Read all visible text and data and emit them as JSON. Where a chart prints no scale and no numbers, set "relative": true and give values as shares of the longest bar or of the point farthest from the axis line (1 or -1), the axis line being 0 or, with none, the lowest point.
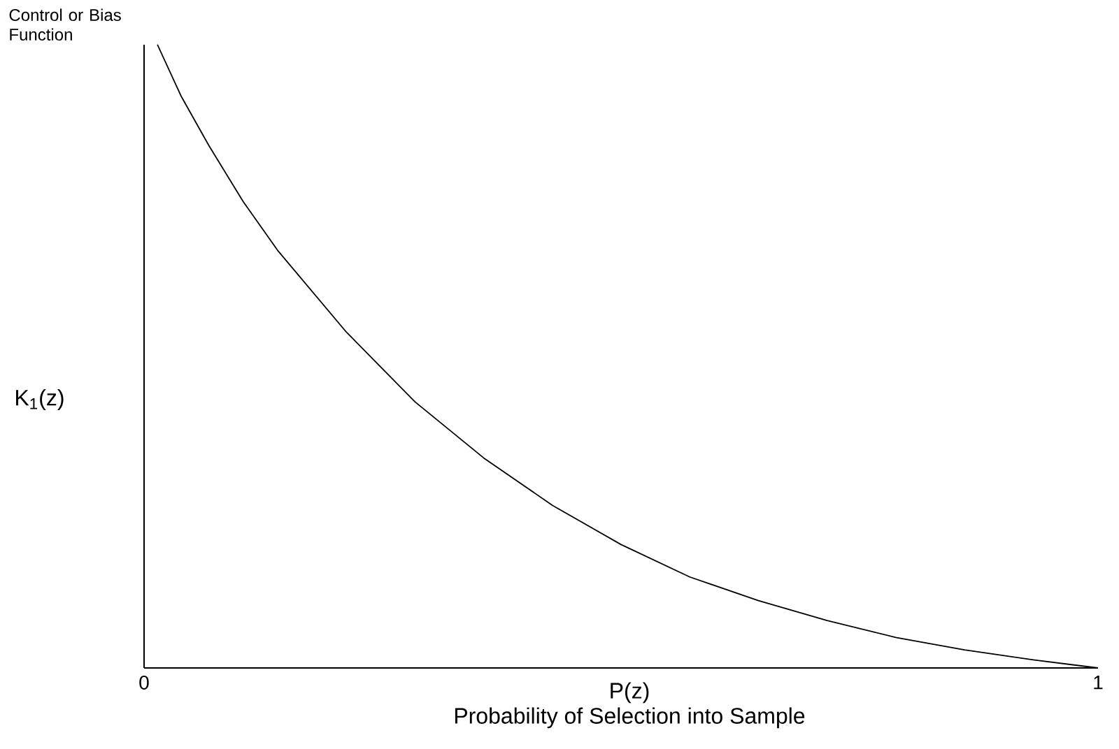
{
  "chart_data": {
    "type": "line",
    "ylabel": "Control or Bias Function",
    "xlabel": "P(z)",
    "annotations": [
      "K$_{1}$(z)",
      "Probability of Selection into Sample"
    ],
    "relative": true,
    "xlim": [
      0,
      1
    ],
    "xticks": [
      0,
      1
    ],
    "x": [
      0.014,
      0.039,
      0.068,
      0.104,
      0.14,
      0.212,
      0.284,
      0.356,
      0.428,
      0.5,
      0.572,
      0.644,
      0.716,
      0.788,
      0.86,
      0.932,
      1.0
    ],
    "values": [
      1.0,
      0.917,
      0.838,
      0.748,
      0.67,
      0.539,
      0.427,
      0.337,
      0.261,
      0.198,
      0.146,
      0.108,
      0.076,
      0.049,
      0.029,
      0.013,
      0.0
    ]
  }
}
